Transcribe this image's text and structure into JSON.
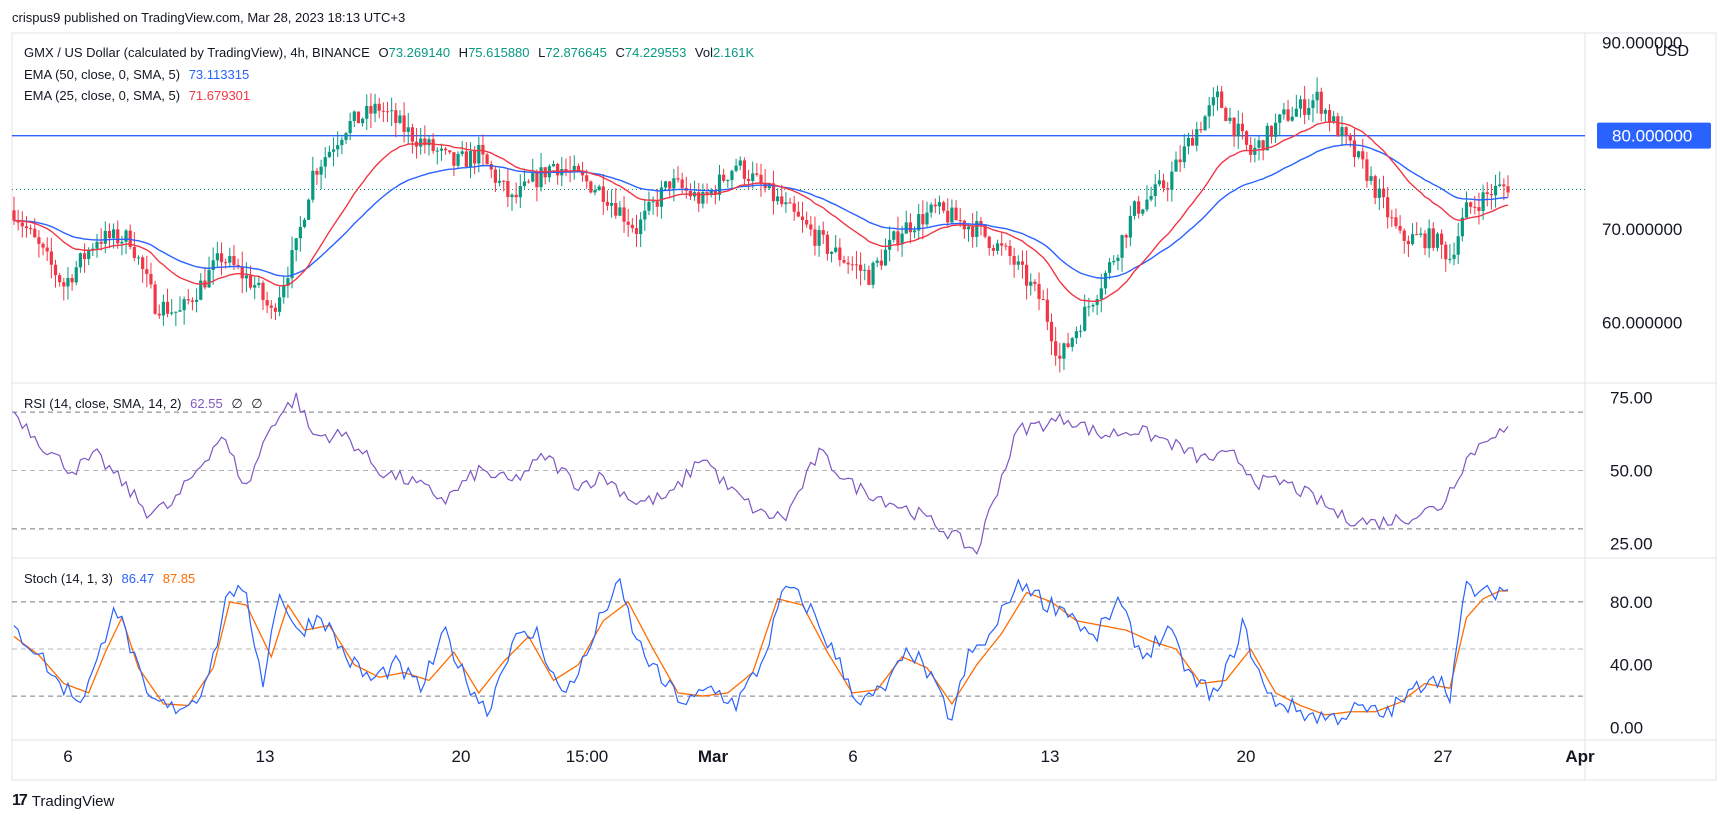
{
  "publish_line": "crispus9 published on TradingView.com, Mar 28, 2023 18:13 UTC+3",
  "footer": {
    "brand": "TradingView",
    "logo_glyph": "17"
  },
  "chart_data": {
    "type": "candlestick",
    "symbol_line": "GMX / US Dollar (calculated by TradingView), 4h, BINANCE",
    "ohlc": {
      "open_label": "O",
      "open": "73.269140",
      "high_label": "H",
      "high": "75.615880",
      "low_label": "L",
      "low": "72.876645",
      "close_label": "C",
      "close": "74.229553",
      "vol_label": "Vol",
      "vol": "2.161K"
    },
    "currency": "USD",
    "indicators": {
      "ema50": {
        "label": "EMA (50, close, 0, SMA, 5)",
        "value": "73.113315",
        "color": "#2962ff"
      },
      "ema25": {
        "label": "EMA (25, close, 0, SMA, 5)",
        "value": "71.679301",
        "color": "#f23645"
      },
      "rsi": {
        "label": "RSI (14, close, SMA, 14, 2)",
        "value": "62.55",
        "extra1": "∅",
        "extra2": "∅",
        "color": "#7e57c2"
      },
      "stoch": {
        "label": "Stoch (14, 1, 3)",
        "k": "86.47",
        "d": "87.85",
        "k_color": "#2962ff",
        "d_color": "#ff6d00"
      }
    },
    "price_axis": {
      "ticks": [
        "60.000000",
        "70.000000",
        "90.000000"
      ],
      "ylim": [
        53.5,
        91
      ]
    },
    "horizontal_line": {
      "price": 80,
      "label": "80.000000",
      "color": "#2962ff"
    },
    "last_price": 74.229553,
    "rsi_axis": {
      "ticks": [
        "25.00",
        "50.00",
        "75.00"
      ],
      "levels": [
        30,
        50,
        70
      ],
      "ylim": [
        20,
        80
      ]
    },
    "stoch_axis": {
      "ticks": [
        "0.00",
        "40.00",
        "80.00"
      ],
      "levels": [
        20,
        50,
        80
      ],
      "ylim": [
        -8,
        108
      ]
    },
    "time_axis": [
      "6",
      "13",
      "20",
      "15:00",
      "Mar",
      "6",
      "13",
      "20",
      "27",
      "Apr"
    ],
    "price_anchors": [
      [
        0,
        72
      ],
      [
        12,
        64
      ],
      [
        20,
        69
      ],
      [
        28,
        69
      ],
      [
        34,
        62
      ],
      [
        40,
        61
      ],
      [
        50,
        67
      ],
      [
        58,
        64
      ],
      [
        62,
        61
      ],
      [
        68,
        68
      ],
      [
        72,
        76
      ],
      [
        80,
        81
      ],
      [
        88,
        83
      ],
      [
        96,
        80
      ],
      [
        106,
        77
      ],
      [
        112,
        78
      ],
      [
        120,
        73
      ],
      [
        130,
        77
      ],
      [
        142,
        74
      ],
      [
        150,
        70
      ],
      [
        158,
        75
      ],
      [
        166,
        73
      ],
      [
        174,
        77
      ],
      [
        184,
        73
      ],
      [
        196,
        68
      ],
      [
        206,
        65
      ],
      [
        214,
        70
      ],
      [
        222,
        72
      ],
      [
        232,
        70
      ],
      [
        240,
        67
      ],
      [
        248,
        62
      ],
      [
        252,
        56
      ],
      [
        258,
        61
      ],
      [
        264,
        66
      ],
      [
        270,
        72
      ],
      [
        278,
        75
      ],
      [
        284,
        80
      ],
      [
        290,
        84
      ],
      [
        298,
        78
      ],
      [
        306,
        82
      ],
      [
        314,
        84
      ],
      [
        320,
        80
      ],
      [
        326,
        76
      ],
      [
        334,
        69
      ],
      [
        342,
        69
      ],
      [
        346,
        67
      ],
      [
        350,
        72
      ],
      [
        356,
        74
      ],
      [
        362,
        75
      ]
    ],
    "rsi_values": [
      [
        0,
        70
      ],
      [
        8,
        57
      ],
      [
        14,
        50
      ],
      [
        20,
        55
      ],
      [
        26,
        46
      ],
      [
        32,
        36
      ],
      [
        38,
        38
      ],
      [
        44,
        50
      ],
      [
        50,
        62
      ],
      [
        56,
        44
      ],
      [
        62,
        66
      ],
      [
        68,
        75
      ],
      [
        72,
        62
      ],
      [
        80,
        62
      ],
      [
        88,
        50
      ],
      [
        96,
        46
      ],
      [
        104,
        40
      ],
      [
        112,
        50
      ],
      [
        120,
        46
      ],
      [
        128,
        55
      ],
      [
        136,
        45
      ],
      [
        142,
        48
      ],
      [
        150,
        39
      ],
      [
        158,
        41
      ],
      [
        166,
        55
      ],
      [
        172,
        44
      ],
      [
        180,
        35
      ],
      [
        186,
        34
      ],
      [
        194,
        56
      ],
      [
        202,
        45
      ],
      [
        210,
        40
      ],
      [
        218,
        35
      ],
      [
        226,
        28
      ],
      [
        232,
        22
      ],
      [
        236,
        40
      ],
      [
        242,
        64
      ],
      [
        248,
        66
      ],
      [
        254,
        68
      ],
      [
        262,
        62
      ],
      [
        270,
        64
      ],
      [
        278,
        60
      ],
      [
        286,
        54
      ],
      [
        294,
        55
      ],
      [
        300,
        46
      ],
      [
        306,
        46
      ],
      [
        314,
        40
      ],
      [
        320,
        34
      ],
      [
        328,
        32
      ],
      [
        336,
        34
      ],
      [
        344,
        38
      ],
      [
        350,
        54
      ],
      [
        356,
        63
      ]
    ],
    "stoch_k": [
      [
        0,
        62
      ],
      [
        6,
        48
      ],
      [
        10,
        30
      ],
      [
        16,
        18
      ],
      [
        20,
        40
      ],
      [
        24,
        80
      ],
      [
        28,
        52
      ],
      [
        32,
        18
      ],
      [
        38,
        12
      ],
      [
        44,
        18
      ],
      [
        48,
        45
      ],
      [
        52,
        90
      ],
      [
        56,
        80
      ],
      [
        60,
        30
      ],
      [
        64,
        88
      ],
      [
        68,
        60
      ],
      [
        74,
        72
      ],
      [
        80,
        45
      ],
      [
        86,
        30
      ],
      [
        92,
        40
      ],
      [
        98,
        25
      ],
      [
        104,
        60
      ],
      [
        108,
        35
      ],
      [
        114,
        10
      ],
      [
        120,
        55
      ],
      [
        126,
        60
      ],
      [
        132,
        20
      ],
      [
        138,
        45
      ],
      [
        142,
        75
      ],
      [
        146,
        90
      ],
      [
        150,
        55
      ],
      [
        156,
        30
      ],
      [
        162,
        15
      ],
      [
        168,
        25
      ],
      [
        174,
        15
      ],
      [
        180,
        40
      ],
      [
        186,
        90
      ],
      [
        192,
        75
      ],
      [
        198,
        45
      ],
      [
        204,
        15
      ],
      [
        210,
        25
      ],
      [
        216,
        50
      ],
      [
        220,
        35
      ],
      [
        226,
        5
      ],
      [
        230,
        45
      ],
      [
        236,
        60
      ],
      [
        240,
        85
      ],
      [
        244,
        92
      ],
      [
        248,
        80
      ],
      [
        254,
        75
      ],
      [
        260,
        55
      ],
      [
        266,
        80
      ],
      [
        272,
        45
      ],
      [
        278,
        62
      ],
      [
        284,
        30
      ],
      [
        290,
        20
      ],
      [
        296,
        65
      ],
      [
        302,
        20
      ],
      [
        306,
        15
      ],
      [
        312,
        8
      ],
      [
        318,
        6
      ],
      [
        324,
        12
      ],
      [
        330,
        8
      ],
      [
        336,
        20
      ],
      [
        342,
        35
      ],
      [
        346,
        22
      ],
      [
        350,
        90
      ],
      [
        354,
        84
      ],
      [
        358,
        88
      ]
    ],
    "stoch_d": [
      [
        0,
        58
      ],
      [
        6,
        46
      ],
      [
        12,
        28
      ],
      [
        18,
        22
      ],
      [
        22,
        48
      ],
      [
        26,
        70
      ],
      [
        30,
        38
      ],
      [
        36,
        15
      ],
      [
        42,
        14
      ],
      [
        48,
        38
      ],
      [
        52,
        80
      ],
      [
        56,
        78
      ],
      [
        62,
        45
      ],
      [
        66,
        78
      ],
      [
        70,
        62
      ],
      [
        76,
        65
      ],
      [
        82,
        40
      ],
      [
        88,
        32
      ],
      [
        94,
        35
      ],
      [
        100,
        30
      ],
      [
        106,
        48
      ],
      [
        112,
        22
      ],
      [
        118,
        42
      ],
      [
        124,
        58
      ],
      [
        130,
        30
      ],
      [
        136,
        40
      ],
      [
        142,
        68
      ],
      [
        148,
        80
      ],
      [
        154,
        50
      ],
      [
        160,
        22
      ],
      [
        166,
        20
      ],
      [
        172,
        22
      ],
      [
        178,
        35
      ],
      [
        184,
        82
      ],
      [
        190,
        78
      ],
      [
        196,
        48
      ],
      [
        202,
        22
      ],
      [
        208,
        24
      ],
      [
        214,
        45
      ],
      [
        220,
        38
      ],
      [
        226,
        15
      ],
      [
        232,
        40
      ],
      [
        238,
        60
      ],
      [
        244,
        86
      ],
      [
        250,
        80
      ],
      [
        256,
        68
      ],
      [
        262,
        65
      ],
      [
        268,
        62
      ],
      [
        274,
        55
      ],
      [
        280,
        50
      ],
      [
        286,
        28
      ],
      [
        292,
        30
      ],
      [
        298,
        50
      ],
      [
        304,
        22
      ],
      [
        310,
        14
      ],
      [
        316,
        8
      ],
      [
        322,
        10
      ],
      [
        328,
        10
      ],
      [
        334,
        16
      ],
      [
        340,
        28
      ],
      [
        346,
        25
      ],
      [
        350,
        70
      ],
      [
        354,
        82
      ],
      [
        358,
        87
      ]
    ]
  }
}
